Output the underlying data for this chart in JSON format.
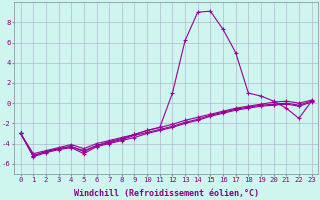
{
  "xlabel": "Windchill (Refroidissement éolien,°C)",
  "x": [
    0,
    1,
    2,
    3,
    4,
    5,
    6,
    7,
    8,
    9,
    10,
    11,
    12,
    13,
    14,
    15,
    16,
    17,
    18,
    19,
    20,
    21,
    22,
    23
  ],
  "series": [
    [
      -3.0,
      -5.2,
      -4.8,
      -4.5,
      -4.3,
      -4.7,
      -4.2,
      -3.9,
      -3.6,
      -3.2,
      -2.9,
      -2.6,
      -2.3,
      -1.9,
      -1.6,
      -1.2,
      -0.9,
      -0.6,
      -0.4,
      -0.2,
      -0.1,
      0.0,
      -0.2,
      0.2
    ],
    [
      -3.0,
      -5.0,
      -4.7,
      -4.4,
      -4.1,
      -4.5,
      -4.0,
      -3.7,
      -3.4,
      -3.1,
      -2.7,
      -2.4,
      -2.1,
      -1.7,
      -1.4,
      -1.1,
      -0.8,
      -0.5,
      -0.3,
      -0.1,
      0.1,
      0.2,
      -0.0,
      0.3
    ],
    [
      -3.0,
      -5.3,
      -4.9,
      -4.6,
      -4.4,
      -5.0,
      -4.3,
      -4.0,
      -3.7,
      -3.4,
      -3.0,
      -2.7,
      -2.4,
      -2.0,
      -1.7,
      -1.3,
      -1.0,
      -0.7,
      -0.5,
      -0.3,
      -0.2,
      -0.1,
      -0.3,
      0.1
    ],
    [
      -3.0,
      -5.2,
      -4.8,
      -4.5,
      -4.3,
      -4.8,
      -4.2,
      -3.8,
      -3.5,
      -3.1,
      -2.7,
      -2.4,
      1.0,
      6.2,
      9.0,
      9.1,
      7.3,
      5.0,
      1.0,
      0.7,
      0.2,
      -0.5,
      -1.5,
      0.2
    ]
  ],
  "line_color": "#990099",
  "marker": "+",
  "marker_size": 3.5,
  "bg_color": "#cef5ee",
  "grid_color": "#aaaacc",
  "axis_color": "#880088",
  "ylim": [
    -7,
    10
  ],
  "yticks": [
    -6,
    -4,
    -2,
    0,
    2,
    4,
    6,
    8
  ],
  "xlim": [
    -0.5,
    23.5
  ],
  "xticks": [
    0,
    1,
    2,
    3,
    4,
    5,
    6,
    7,
    8,
    9,
    10,
    11,
    12,
    13,
    14,
    15,
    16,
    17,
    18,
    19,
    20,
    21,
    22,
    23
  ],
  "tick_fontsize": 5.2,
  "xlabel_fontsize": 6.0,
  "line_width": 0.8,
  "fig_width": 3.2,
  "fig_height": 2.0,
  "dpi": 100
}
